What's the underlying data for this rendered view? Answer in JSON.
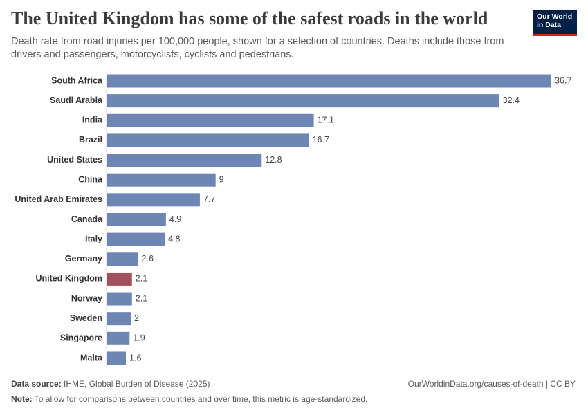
{
  "logo": [
    "Our World",
    "in Data"
  ],
  "chart_data": {
    "type": "bar",
    "orientation": "horizontal",
    "title": "The United Kingdom has some of the safest roads in the world",
    "subtitle": "Death rate from road injuries per 100,000 people, shown for a selection of countries. Deaths include those from drivers and passengers, motorcyclists, cyclists and pedestrians.",
    "categories": [
      "South Africa",
      "Saudi Arabia",
      "India",
      "Brazil",
      "United States",
      "China",
      "United Arab Emirates",
      "Canada",
      "Italy",
      "Germany",
      "United Kingdom",
      "Norway",
      "Sweden",
      "Singapore",
      "Malta"
    ],
    "values": [
      36.7,
      32.4,
      17.1,
      16.7,
      12.8,
      9,
      7.7,
      4.9,
      4.8,
      2.6,
      2.1,
      2.1,
      2,
      1.9,
      1.6
    ],
    "colors": [
      "#6d86b3",
      "#6d86b3",
      "#6d86b3",
      "#6d86b3",
      "#6d86b3",
      "#6d86b3",
      "#6d86b3",
      "#6d86b3",
      "#6d86b3",
      "#6d86b3",
      "#a2505c",
      "#6d86b3",
      "#6d86b3",
      "#6d86b3",
      "#6d86b3"
    ],
    "source_label": "Data source:",
    "source": "IHME, Global Burden of Disease (2025)",
    "url": "OurWorldinData.org/causes-of-death | CC BY",
    "note_label": "Note:",
    "note": "To allow for comparisons between countries and over time, this metric is age-standardized."
  }
}
